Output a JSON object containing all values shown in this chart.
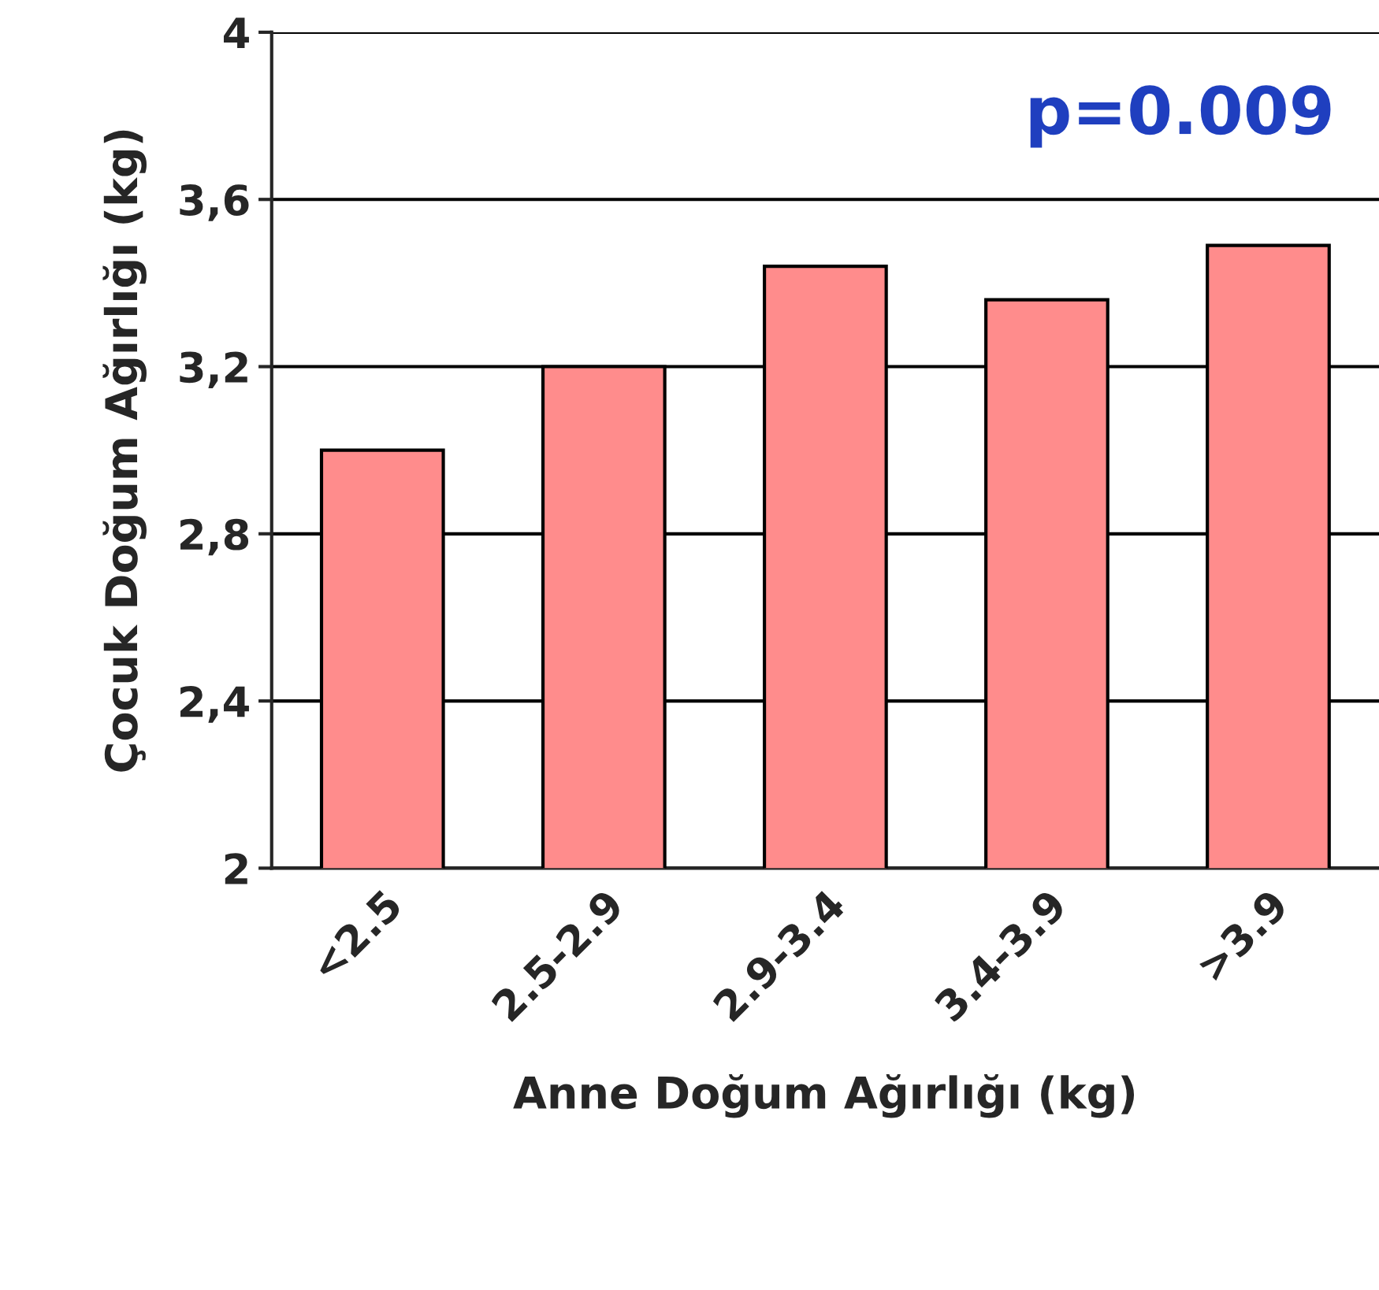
{
  "chart_data": {
    "type": "bar",
    "xlabel": "Anne Doğum Ağırlığı (kg)",
    "ylabel": "Çocuk Doğum Ağırlığı (kg)",
    "categories": [
      "<2.5",
      "2.5-2.9",
      "2.9-3.4",
      "3.4-3.9",
      ">3.9"
    ],
    "values": [
      3.0,
      3.2,
      3.44,
      3.36,
      3.49
    ],
    "color": "#ff8c8c",
    "ylim": [
      2,
      4
    ],
    "yticks": [
      {
        "value": 2,
        "label": "2"
      },
      {
        "value": 2.4,
        "label": "2,4"
      },
      {
        "value": 2.8,
        "label": "2,8"
      },
      {
        "value": 3.2,
        "label": "3,2"
      },
      {
        "value": 3.6,
        "label": "3,6"
      },
      {
        "value": 4,
        "label": "4"
      }
    ],
    "grid": "y",
    "annotations": [
      "p=0.009"
    ]
  }
}
